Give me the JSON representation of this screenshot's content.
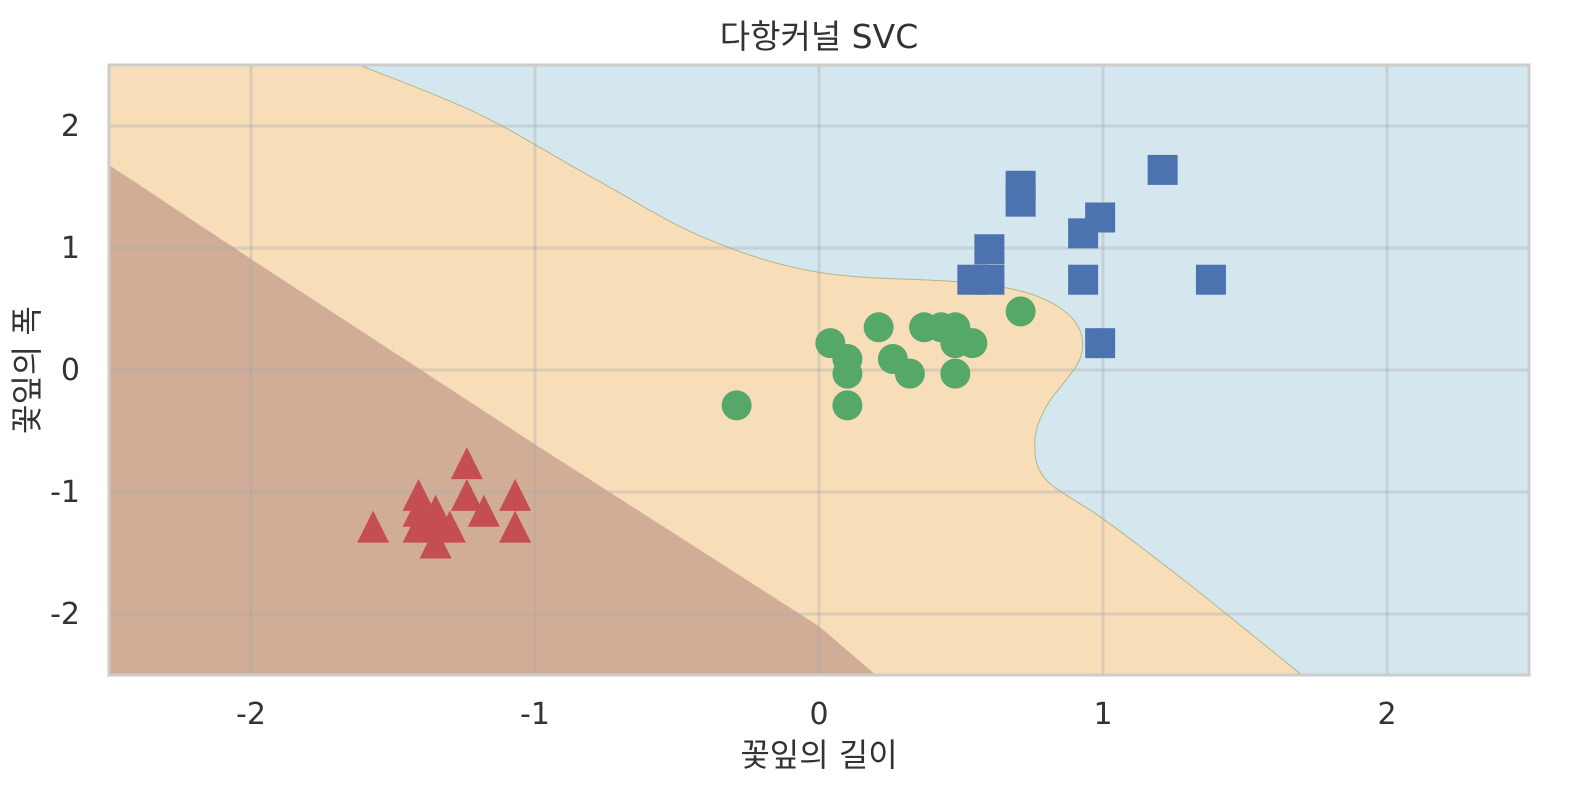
{
  "chart_data": {
    "type": "scatter",
    "title": "다항커널 SVC",
    "xlabel": "꽃잎의 길이",
    "ylabel": "꽃잎의 폭",
    "xlim": [
      -2.5,
      2.5
    ],
    "ylim": [
      -2.5,
      2.5
    ],
    "x_ticks": [
      -2,
      -1,
      0,
      1,
      2
    ],
    "y_ticks": [
      -2,
      -1,
      0,
      1,
      2
    ],
    "x_tick_labels": [
      "-2",
      "-1",
      "0",
      "1",
      "2"
    ],
    "y_tick_labels": [
      "-2",
      "-1",
      "0",
      "1",
      "2"
    ],
    "grid": true,
    "legend": "none",
    "regions": [
      {
        "color": "#d4e6ee"
      },
      {
        "color": "#f8deb8"
      },
      {
        "color": "#d1ad97"
      }
    ],
    "region_boundaries": {
      "lower": [
        [
          -2.5,
          1.68
        ],
        [
          -2.0,
          0.91
        ],
        [
          -1.0,
          -0.61
        ],
        [
          0.0,
          -2.1
        ],
        [
          0.2,
          -2.5
        ]
      ],
      "upper": [
        [
          -1.62,
          2.5
        ],
        [
          -1.2,
          2.1
        ],
        [
          -0.8,
          1.58
        ],
        [
          -0.4,
          1.08
        ],
        [
          0.0,
          0.8
        ],
        [
          0.5,
          0.72
        ],
        [
          0.75,
          0.62
        ],
        [
          0.9,
          0.4
        ],
        [
          0.92,
          0.1
        ],
        [
          0.8,
          -0.3
        ],
        [
          0.76,
          -0.6
        ],
        [
          0.8,
          -0.9
        ],
        [
          1.0,
          -1.22
        ],
        [
          1.3,
          -1.75
        ],
        [
          1.7,
          -2.5
        ]
      ]
    },
    "series": [
      {
        "marker": "triangle",
        "color": "#c44e52",
        "points": [
          [
            -1.57,
            -1.31
          ],
          [
            -1.41,
            -1.05
          ],
          [
            -1.41,
            -1.18
          ],
          [
            -1.41,
            -1.31
          ],
          [
            -1.35,
            -1.18
          ],
          [
            -1.35,
            -1.31
          ],
          [
            -1.35,
            -1.44
          ],
          [
            -1.3,
            -1.31
          ],
          [
            -1.24,
            -0.79
          ],
          [
            -1.24,
            -1.05
          ],
          [
            -1.18,
            -1.18
          ],
          [
            -1.07,
            -1.05
          ],
          [
            -1.07,
            -1.31
          ]
        ]
      },
      {
        "marker": "circle",
        "color": "#55a868",
        "points": [
          [
            -0.29,
            -0.29
          ],
          [
            0.04,
            0.22
          ],
          [
            0.1,
            0.09
          ],
          [
            0.1,
            -0.03
          ],
          [
            0.1,
            -0.29
          ],
          [
            0.21,
            0.35
          ],
          [
            0.26,
            0.09
          ],
          [
            0.32,
            -0.03
          ],
          [
            0.37,
            0.35
          ],
          [
            0.43,
            0.35
          ],
          [
            0.48,
            0.35
          ],
          [
            0.48,
            0.22
          ],
          [
            0.48,
            -0.03
          ],
          [
            0.54,
            0.22
          ],
          [
            0.71,
            0.48
          ]
        ]
      },
      {
        "marker": "square",
        "color": "#4c72b0",
        "points": [
          [
            0.54,
            0.74
          ],
          [
            0.6,
            0.74
          ],
          [
            0.6,
            0.99
          ],
          [
            0.71,
            1.51
          ],
          [
            0.71,
            1.38
          ],
          [
            0.93,
            1.12
          ],
          [
            0.93,
            0.74
          ],
          [
            0.99,
            1.25
          ],
          [
            0.99,
            0.22
          ],
          [
            1.21,
            1.64
          ],
          [
            1.38,
            0.74
          ]
        ]
      }
    ]
  }
}
